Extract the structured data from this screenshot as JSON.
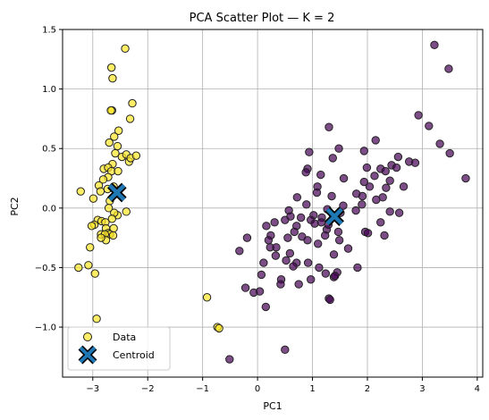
{
  "chart_data": {
    "type": "scatter",
    "title": "PCA Scatter Plot — K = 2",
    "xlabel": "PC1",
    "ylabel": "PC2",
    "xlim": [
      -3.55,
      4.1
    ],
    "ylim": [
      -1.42,
      1.5
    ],
    "xticks": [
      -3,
      -2,
      -1,
      0,
      1,
      2,
      3,
      4
    ],
    "yticks": [
      -1.0,
      -0.5,
      0.0,
      0.5,
      1.0,
      1.5
    ],
    "xtick_labels": [
      "−3",
      "−2",
      "−1",
      "0",
      "1",
      "2",
      "3",
      "4"
    ],
    "ytick_labels": [
      "−1.0",
      "−0.5",
      "0.0",
      "0.5",
      "1.0",
      "1.5"
    ],
    "grid": true,
    "legend_position": "bottom-left",
    "colors": {
      "cluster_0": "#440154",
      "cluster_1": "#fde725",
      "centroid": "#1f77b4",
      "grid": "#b0b0b0"
    },
    "legend": [
      {
        "label": "Data",
        "marker": "circle"
      },
      {
        "label": "Centroid",
        "marker": "x"
      }
    ],
    "series": [
      {
        "cluster": 1,
        "points": [
          [
            -2.41,
            1.34
          ],
          [
            -2.66,
            1.18
          ],
          [
            -2.64,
            1.09
          ],
          [
            -2.65,
            0.82
          ],
          [
            -2.67,
            0.82
          ],
          [
            -2.28,
            0.88
          ],
          [
            -2.32,
            0.75
          ],
          [
            -2.53,
            0.65
          ],
          [
            -2.61,
            0.6
          ],
          [
            -2.55,
            0.52
          ],
          [
            -2.7,
            0.55
          ],
          [
            -2.59,
            0.46
          ],
          [
            -2.47,
            0.43
          ],
          [
            -2.34,
            0.39
          ],
          [
            -2.39,
            0.45
          ],
          [
            -2.31,
            0.42
          ],
          [
            -2.21,
            0.44
          ],
          [
            -2.64,
            0.37
          ],
          [
            -2.8,
            0.33
          ],
          [
            -2.72,
            0.34
          ],
          [
            -2.66,
            0.31
          ],
          [
            -2.54,
            0.31
          ],
          [
            -2.89,
            0.19
          ],
          [
            -2.72,
            0.26
          ],
          [
            -2.81,
            0.24
          ],
          [
            -2.73,
            0.16
          ],
          [
            -2.62,
            0.18
          ],
          [
            -2.86,
            0.14
          ],
          [
            -2.69,
            0.06
          ],
          [
            -2.99,
            0.08
          ],
          [
            -3.22,
            0.14
          ],
          [
            -2.71,
            0.0
          ],
          [
            -2.39,
            -0.03
          ],
          [
            -2.55,
            -0.06
          ],
          [
            -2.61,
            -0.04
          ],
          [
            -2.65,
            -0.09
          ],
          [
            -2.91,
            -0.1
          ],
          [
            -2.84,
            -0.11
          ],
          [
            -2.77,
            -0.12
          ],
          [
            -2.76,
            -0.17
          ],
          [
            -2.97,
            -0.14
          ],
          [
            -3.02,
            -0.15
          ],
          [
            -2.62,
            -0.17
          ],
          [
            -2.72,
            -0.21
          ],
          [
            -2.85,
            -0.22
          ],
          [
            -2.69,
            -0.22
          ],
          [
            -2.78,
            -0.22
          ],
          [
            -2.63,
            -0.23
          ],
          [
            -2.76,
            -0.27
          ],
          [
            -2.85,
            -0.25
          ],
          [
            -3.05,
            -0.33
          ],
          [
            -3.08,
            -0.48
          ],
          [
            -3.26,
            -0.5
          ],
          [
            -2.96,
            -0.55
          ],
          [
            -2.93,
            -0.93
          ],
          [
            -0.92,
            -0.75
          ],
          [
            -0.73,
            -1.0
          ],
          [
            -0.7,
            -1.01
          ]
        ]
      },
      {
        "cluster": 0,
        "points": [
          [
            3.22,
            1.37
          ],
          [
            3.48,
            1.17
          ],
          [
            2.93,
            0.78
          ],
          [
            3.12,
            0.69
          ],
          [
            1.3,
            0.68
          ],
          [
            2.15,
            0.57
          ],
          [
            3.32,
            0.54
          ],
          [
            1.48,
            0.5
          ],
          [
            1.94,
            0.48
          ],
          [
            3.5,
            0.46
          ],
          [
            0.94,
            0.47
          ],
          [
            1.37,
            0.42
          ],
          [
            2.56,
            0.43
          ],
          [
            2.76,
            0.39
          ],
          [
            2.87,
            0.38
          ],
          [
            2.44,
            0.36
          ],
          [
            1.99,
            0.34
          ],
          [
            2.24,
            0.33
          ],
          [
            2.33,
            0.31
          ],
          [
            2.53,
            0.34
          ],
          [
            0.91,
            0.33
          ],
          [
            0.88,
            0.3
          ],
          [
            1.15,
            0.28
          ],
          [
            2.13,
            0.27
          ],
          [
            1.57,
            0.25
          ],
          [
            1.94,
            0.22
          ],
          [
            2.41,
            0.23
          ],
          [
            3.79,
            0.25
          ],
          [
            1.09,
            0.18
          ],
          [
            2.04,
            0.18
          ],
          [
            2.34,
            0.17
          ],
          [
            2.66,
            0.18
          ],
          [
            1.08,
            0.13
          ],
          [
            1.8,
            0.12
          ],
          [
            1.91,
            0.1
          ],
          [
            0.72,
            0.09
          ],
          [
            1.35,
            0.1
          ],
          [
            2.28,
            0.09
          ],
          [
            1.9,
            0.03
          ],
          [
            2.16,
            0.07
          ],
          [
            1.79,
            -0.02
          ],
          [
            0.89,
            0.03
          ],
          [
            1.56,
            0.02
          ],
          [
            0.57,
            -0.02
          ],
          [
            1.27,
            -0.01
          ],
          [
            1.51,
            -0.04
          ],
          [
            2.41,
            -0.03
          ],
          [
            2.58,
            -0.04
          ],
          [
            1.02,
            -0.06
          ],
          [
            0.6,
            -0.07
          ],
          [
            0.79,
            -0.08
          ],
          [
            0.5,
            -0.1
          ],
          [
            1.17,
            -0.08
          ],
          [
            1.16,
            -0.12
          ],
          [
            0.97,
            -0.1
          ],
          [
            1.04,
            -0.13
          ],
          [
            2.24,
            -0.12
          ],
          [
            0.31,
            -0.12
          ],
          [
            0.71,
            -0.15
          ],
          [
            0.16,
            -0.15
          ],
          [
            1.26,
            -0.18
          ],
          [
            1.29,
            -0.14
          ],
          [
            0.24,
            -0.23
          ],
          [
            1.47,
            -0.2
          ],
          [
            1.96,
            -0.2
          ],
          [
            2.01,
            -0.21
          ],
          [
            2.31,
            -0.23
          ],
          [
            0.67,
            -0.2
          ],
          [
            1.23,
            -0.23
          ],
          [
            0.81,
            -0.24
          ],
          [
            0.55,
            -0.25
          ],
          [
            -0.19,
            -0.25
          ],
          [
            0.2,
            -0.27
          ],
          [
            1.49,
            -0.27
          ],
          [
            0.91,
            -0.27
          ],
          [
            1.1,
            -0.3
          ],
          [
            0.23,
            -0.33
          ],
          [
            0.34,
            -0.33
          ],
          [
            -0.33,
            -0.36
          ],
          [
            1.65,
            -0.34
          ],
          [
            0.59,
            -0.38
          ],
          [
            1.39,
            -0.39
          ],
          [
            0.33,
            -0.4
          ],
          [
            0.52,
            -0.44
          ],
          [
            0.92,
            -0.46
          ],
          [
            0.71,
            -0.46
          ],
          [
            0.11,
            -0.46
          ],
          [
            1.12,
            -0.5
          ],
          [
            1.82,
            -0.5
          ],
          [
            0.65,
            -0.49
          ],
          [
            1.45,
            -0.54
          ],
          [
            1.24,
            -0.55
          ],
          [
            0.07,
            -0.56
          ],
          [
            1.39,
            -0.58
          ],
          [
            1.41,
            -0.57
          ],
          [
            0.43,
            -0.6
          ],
          [
            0.97,
            -0.6
          ],
          [
            0.75,
            -0.64
          ],
          [
            -0.22,
            -0.67
          ],
          [
            -0.07,
            -0.71
          ],
          [
            0.04,
            -0.7
          ],
          [
            1.3,
            -0.76
          ],
          [
            1.32,
            -0.77
          ],
          [
            0.15,
            -0.83
          ],
          [
            0.42,
            -0.64
          ],
          [
            0.5,
            -1.19
          ],
          [
            -0.51,
            -1.27
          ]
        ]
      }
    ],
    "centroids": [
      {
        "cluster": 1,
        "x": -2.56,
        "y": 0.13
      },
      {
        "cluster": 0,
        "x": 1.4,
        "y": -0.07
      }
    ]
  }
}
